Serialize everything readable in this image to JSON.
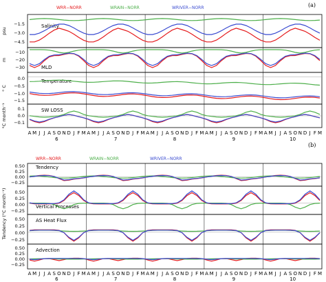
{
  "figure_labels": {
    "a": "(a)",
    "b": "(b)"
  },
  "legend": [
    {
      "name": "WRR−NORR",
      "color": "#e41a1c"
    },
    {
      "name": "WRAIN−NORR",
      "color": "#4daf4a"
    },
    {
      "name": "WRIVER−NORR",
      "color": "#3a4bd0"
    }
  ],
  "x_axis": {
    "month_letters": [
      "A",
      "M",
      "J",
      "J",
      "A",
      "S",
      "O",
      "N",
      "D",
      "J",
      "F",
      "M"
    ],
    "years": [
      "6",
      "7",
      "8",
      "9",
      "10"
    ]
  },
  "panel_a": [
    {
      "title": "Salinity",
      "ylabel": "psu",
      "ticks": [
        "−1.5",
        "−3.0",
        "−4.5"
      ]
    },
    {
      "title": "MLD",
      "ylabel": "m",
      "ticks": [
        "−10",
        "−20",
        "−30"
      ]
    },
    {
      "title": "Temperature",
      "ylabel": "° C",
      "ticks": [
        "0.0",
        "−0.5",
        "−1.0",
        "−1.5"
      ]
    },
    {
      "title": "SW LOSS",
      "ylabel": "°C month⁻¹",
      "ticks": [
        "0.1",
        "0.0",
        "−0.1"
      ]
    }
  ],
  "panel_b": {
    "ylabel": "Tendency (°C month⁻¹)",
    "panels": [
      {
        "title": "Tendency",
        "ticks": [
          "0.50",
          "0.25",
          "0.00",
          "−0.25"
        ]
      },
      {
        "title": "Vertical Processes",
        "ticks": [
          "0.50",
          "0.25",
          "0.00",
          "−0.25"
        ]
      },
      {
        "title": "AS Heat Flux",
        "ticks": [
          "0.50",
          "0.25",
          "0.00",
          "−0.25"
        ]
      },
      {
        "title": "Advection",
        "ticks": [
          "0.50",
          "0.25",
          "0.00",
          "−0.25"
        ]
      }
    ]
  },
  "chart_data": [
    {
      "type": "line",
      "title": "Salinity",
      "ylabel": "psu",
      "ylim": [
        -5.0,
        -0.5
      ],
      "x_range": "April of year 6 to March of year 11, monthly",
      "series": [
        {
          "name": "WRR−NORR",
          "approx": "seasonal cycle between about −4.5 (Apr–May) and −2.3 (Oct–Nov)"
        },
        {
          "name": "WRAIN−NORR",
          "approx": "near −1.0 with small seasonal variation (−0.9 to −1.3)"
        },
        {
          "name": "WRIVER−NORR",
          "approx": "seasonal cycle between about −3.4 and −1.6"
        }
      ]
    },
    {
      "type": "line",
      "title": "MLD",
      "ylabel": "m",
      "ylim": [
        -35,
        -3
      ],
      "series": [
        {
          "name": "WRR−NORR",
          "approx": "near −8 in Dec–Jan, dropping to about −30 in Apr–May"
        },
        {
          "name": "WRAIN−NORR",
          "approx": "small, −3 to −10"
        },
        {
          "name": "WRIVER−NORR",
          "approx": "near −8 in Dec–Jan, dropping to about −28 in Apr–May"
        }
      ]
    },
    {
      "type": "line",
      "title": "Temperature",
      "ylabel": "° C",
      "ylim": [
        -1.7,
        0.2
      ],
      "series": [
        {
          "name": "WRR−NORR",
          "approx": "about −1.1 to −1.5, slowly decreasing"
        },
        {
          "name": "WRAIN−NORR",
          "approx": "about −0.2 to −0.6"
        },
        {
          "name": "WRIVER−NORR",
          "approx": "about −1.0 to −1.4"
        }
      ]
    },
    {
      "type": "line",
      "title": "SW LOSS",
      "ylabel": "°C month⁻¹",
      "ylim": [
        -0.15,
        0.15
      ],
      "series": [
        {
          "name": "WRR−NORR",
          "approx": "seasonal, −0.1 to 0.05"
        },
        {
          "name": "WRAIN−NORR",
          "approx": "seasonal, −0.03 to 0.08"
        },
        {
          "name": "WRIVER−NORR",
          "approx": "seasonal, −0.1 to 0.05"
        }
      ]
    },
    {
      "type": "line",
      "title": "Tendency",
      "ylabel": "Tendency (°C month⁻¹)",
      "ylim": [
        -0.35,
        0.55
      ],
      "series": [
        {
          "name": "WRR−NORR",
          "approx": "oscillates about 0, −0.15 to 0.1"
        },
        {
          "name": "WRAIN−NORR",
          "approx": "oscillates about 0, −0.1 to 0.1"
        },
        {
          "name": "WRIVER−NORR",
          "approx": "oscillates about 0, −0.15 to 0.1"
        }
      ]
    },
    {
      "type": "line",
      "title": "Vertical Processes",
      "ylim": [
        -0.35,
        0.55
      ],
      "series": [
        {
          "name": "WRR−NORR",
          "approx": "peaks near 0.4 around Dec–Jan, near 0 otherwise"
        },
        {
          "name": "WRAIN−NORR",
          "approx": "dips to about −0.2 in Oct–Nov"
        },
        {
          "name": "WRIVER−NORR",
          "approx": "peaks near 0.45 around Dec–Jan"
        }
      ]
    },
    {
      "type": "line",
      "title": "AS Heat Flux",
      "ylim": [
        -0.35,
        0.55
      ],
      "series": [
        {
          "name": "WRR−NORR",
          "approx": "dips to about −0.3 in Dec–Jan, near 0.05 otherwise"
        },
        {
          "name": "WRAIN−NORR",
          "approx": "near 0, slight positive"
        },
        {
          "name": "WRIVER−NORR",
          "approx": "dips to about −0.28 in Dec–Jan"
        }
      ]
    },
    {
      "type": "line",
      "title": "Advection",
      "ylim": [
        -0.35,
        0.55
      ],
      "series": [
        {
          "name": "WRR−NORR",
          "approx": "dips to about −0.12 in Apr–May and Oct"
        },
        {
          "name": "WRAIN−NORR",
          "approx": "near 0"
        },
        {
          "name": "WRIVER−NORR",
          "approx": "small oscillation about 0"
        }
      ]
    }
  ]
}
